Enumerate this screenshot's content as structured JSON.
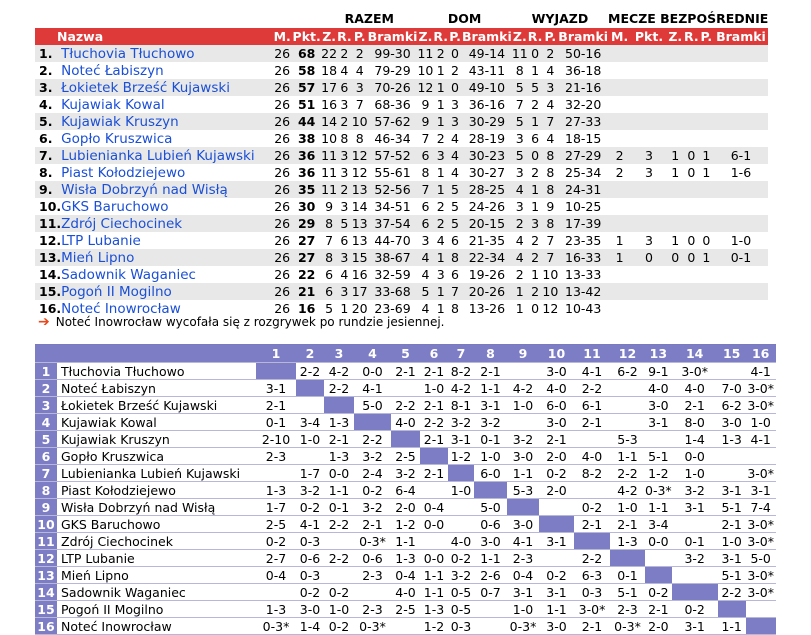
{
  "standings": {
    "group_headers": {
      "razem": "RAZEM",
      "dom": "DOM",
      "wyjazd": "WYJAZD",
      "mecze": "MECZE BEZPOŚREDNIE"
    },
    "columns": [
      "Nazwa",
      "M.",
      "Pkt.",
      "Z.",
      "R.",
      "P.",
      "Bramki",
      "Z.",
      "R.",
      "P.",
      "Bramki",
      "Z.",
      "R.",
      "P.",
      "Bramki",
      "M.",
      "Pkt.",
      "Z.",
      "R.",
      "P.",
      "Bramki"
    ],
    "rows": [
      {
        "pos": "1.",
        "team": "Tłuchovia Tłuchowo",
        "m": "26",
        "pkt": "68",
        "z": "22",
        "r": "2",
        "p": "2",
        "bramki": "99-30",
        "dz": "11",
        "dr": "2",
        "dp": "0",
        "dbramki": "49-14",
        "wz": "11",
        "wr": "0",
        "wp": "2",
        "wbramki": "50-16",
        "hm": "",
        "hpkt": "",
        "hz": "",
        "hr": "",
        "hp": "",
        "hbramki": ""
      },
      {
        "pos": "2.",
        "team": "Noteć Łabiszyn",
        "m": "26",
        "pkt": "58",
        "z": "18",
        "r": "4",
        "p": "4",
        "bramki": "79-29",
        "dz": "10",
        "dr": "1",
        "dp": "2",
        "dbramki": "43-11",
        "wz": "8",
        "wr": "1",
        "wp": "4",
        "wbramki": "36-18",
        "hm": "",
        "hpkt": "",
        "hz": "",
        "hr": "",
        "hp": "",
        "hbramki": ""
      },
      {
        "pos": "3.",
        "team": "Łokietek Brześć Kujawski",
        "m": "26",
        "pkt": "57",
        "z": "17",
        "r": "6",
        "p": "3",
        "bramki": "70-26",
        "dz": "12",
        "dr": "1",
        "dp": "0",
        "dbramki": "49-10",
        "wz": "5",
        "wr": "5",
        "wp": "3",
        "wbramki": "21-16",
        "hm": "",
        "hpkt": "",
        "hz": "",
        "hr": "",
        "hp": "",
        "hbramki": ""
      },
      {
        "pos": "4.",
        "team": "Kujawiak Kowal",
        "m": "26",
        "pkt": "51",
        "z": "16",
        "r": "3",
        "p": "7",
        "bramki": "68-36",
        "dz": "9",
        "dr": "1",
        "dp": "3",
        "dbramki": "36-16",
        "wz": "7",
        "wr": "2",
        "wp": "4",
        "wbramki": "32-20",
        "hm": "",
        "hpkt": "",
        "hz": "",
        "hr": "",
        "hp": "",
        "hbramki": ""
      },
      {
        "pos": "5.",
        "team": "Kujawiak Kruszyn",
        "m": "26",
        "pkt": "44",
        "z": "14",
        "r": "2",
        "p": "10",
        "bramki": "57-62",
        "dz": "9",
        "dr": "1",
        "dp": "3",
        "dbramki": "30-29",
        "wz": "5",
        "wr": "1",
        "wp": "7",
        "wbramki": "27-33",
        "hm": "",
        "hpkt": "",
        "hz": "",
        "hr": "",
        "hp": "",
        "hbramki": ""
      },
      {
        "pos": "6.",
        "team": "Gopło Kruszwica",
        "m": "26",
        "pkt": "38",
        "z": "10",
        "r": "8",
        "p": "8",
        "bramki": "46-34",
        "dz": "7",
        "dr": "2",
        "dp": "4",
        "dbramki": "28-19",
        "wz": "3",
        "wr": "6",
        "wp": "4",
        "wbramki": "18-15",
        "hm": "",
        "hpkt": "",
        "hz": "",
        "hr": "",
        "hp": "",
        "hbramki": ""
      },
      {
        "pos": "7.",
        "team": "Lubienianka Lubień Kujawski",
        "m": "26",
        "pkt": "36",
        "z": "11",
        "r": "3",
        "p": "12",
        "bramki": "57-52",
        "dz": "6",
        "dr": "3",
        "dp": "4",
        "dbramki": "30-23",
        "wz": "5",
        "wr": "0",
        "wp": "8",
        "wbramki": "27-29",
        "hm": "2",
        "hpkt": "3",
        "hz": "1",
        "hr": "0",
        "hp": "1",
        "hbramki": "6-1"
      },
      {
        "pos": "8.",
        "team": "Piast Kołodziejewo",
        "m": "26",
        "pkt": "36",
        "z": "11",
        "r": "3",
        "p": "12",
        "bramki": "55-61",
        "dz": "8",
        "dr": "1",
        "dp": "4",
        "dbramki": "30-27",
        "wz": "3",
        "wr": "2",
        "wp": "8",
        "wbramki": "25-34",
        "hm": "2",
        "hpkt": "3",
        "hz": "1",
        "hr": "0",
        "hp": "1",
        "hbramki": "1-6"
      },
      {
        "pos": "9.",
        "team": "Wisła Dobrzyń nad Wisłą",
        "m": "26",
        "pkt": "35",
        "z": "11",
        "r": "2",
        "p": "13",
        "bramki": "52-56",
        "dz": "7",
        "dr": "1",
        "dp": "5",
        "dbramki": "28-25",
        "wz": "4",
        "wr": "1",
        "wp": "8",
        "wbramki": "24-31",
        "hm": "",
        "hpkt": "",
        "hz": "",
        "hr": "",
        "hp": "",
        "hbramki": ""
      },
      {
        "pos": "10.",
        "team": "GKS Baruchowo",
        "m": "26",
        "pkt": "30",
        "z": "9",
        "r": "3",
        "p": "14",
        "bramki": "34-51",
        "dz": "6",
        "dr": "2",
        "dp": "5",
        "dbramki": "24-26",
        "wz": "3",
        "wr": "1",
        "wp": "9",
        "wbramki": "10-25",
        "hm": "",
        "hpkt": "",
        "hz": "",
        "hr": "",
        "hp": "",
        "hbramki": ""
      },
      {
        "pos": "11.",
        "team": "Zdrój Ciechocinek",
        "m": "26",
        "pkt": "29",
        "z": "8",
        "r": "5",
        "p": "13",
        "bramki": "37-54",
        "dz": "6",
        "dr": "2",
        "dp": "5",
        "dbramki": "20-15",
        "wz": "2",
        "wr": "3",
        "wp": "8",
        "wbramki": "17-39",
        "hm": "",
        "hpkt": "",
        "hz": "",
        "hr": "",
        "hp": "",
        "hbramki": ""
      },
      {
        "pos": "12.",
        "team": "LTP Lubanie",
        "m": "26",
        "pkt": "27",
        "z": "7",
        "r": "6",
        "p": "13",
        "bramki": "44-70",
        "dz": "3",
        "dr": "4",
        "dp": "6",
        "dbramki": "21-35",
        "wz": "4",
        "wr": "2",
        "wp": "7",
        "wbramki": "23-35",
        "hm": "1",
        "hpkt": "3",
        "hz": "1",
        "hr": "0",
        "hp": "0",
        "hbramki": "1-0"
      },
      {
        "pos": "13.",
        "team": "Mień Lipno",
        "m": "26",
        "pkt": "27",
        "z": "8",
        "r": "3",
        "p": "15",
        "bramki": "38-67",
        "dz": "4",
        "dr": "1",
        "dp": "8",
        "dbramki": "22-34",
        "wz": "4",
        "wr": "2",
        "wp": "7",
        "wbramki": "16-33",
        "hm": "1",
        "hpkt": "0",
        "hz": "0",
        "hr": "0",
        "hp": "1",
        "hbramki": "0-1"
      },
      {
        "pos": "14.",
        "team": "Sadownik Waganiec",
        "m": "26",
        "pkt": "22",
        "z": "6",
        "r": "4",
        "p": "16",
        "bramki": "32-59",
        "dz": "4",
        "dr": "3",
        "dp": "6",
        "dbramki": "19-26",
        "wz": "2",
        "wr": "1",
        "wp": "10",
        "wbramki": "13-33",
        "hm": "",
        "hpkt": "",
        "hz": "",
        "hr": "",
        "hp": "",
        "hbramki": ""
      },
      {
        "pos": "15.",
        "team": "Pogoń II Mogilno",
        "m": "26",
        "pkt": "21",
        "z": "6",
        "r": "3",
        "p": "17",
        "bramki": "33-68",
        "dz": "5",
        "dr": "1",
        "dp": "7",
        "dbramki": "20-26",
        "wz": "1",
        "wr": "2",
        "wp": "10",
        "wbramki": "13-42",
        "hm": "",
        "hpkt": "",
        "hz": "",
        "hr": "",
        "hp": "",
        "hbramki": ""
      },
      {
        "pos": "16.",
        "team": "Noteć Inowrocław",
        "m": "26",
        "pkt": "16",
        "z": "5",
        "r": "1",
        "p": "20",
        "bramki": "23-69",
        "dz": "4",
        "dr": "1",
        "dp": "8",
        "dbramki": "13-26",
        "wz": "1",
        "wr": "0",
        "wp": "12",
        "wbramki": "10-43",
        "hm": "",
        "hpkt": "",
        "hz": "",
        "hr": "",
        "hp": "",
        "hbramki": ""
      }
    ]
  },
  "note": "Noteć Inowrocław wycofała się z rozgrywek po rundzie jesiennej.",
  "matrix": {
    "col_numbers": [
      "1",
      "2",
      "3",
      "4",
      "5",
      "6",
      "7",
      "8",
      "9",
      "10",
      "11",
      "12",
      "13",
      "14",
      "15",
      "16"
    ],
    "rows": [
      {
        "num": "1",
        "team": "Tłuchovia Tłuchowo",
        "cells": [
          "",
          "2-2",
          "4-2",
          "0-0",
          "2-1",
          "2-1",
          "8-2",
          "2-1",
          "",
          "3-0",
          "4-1",
          "6-2",
          "9-1",
          "3-0*",
          "",
          "4-1"
        ]
      },
      {
        "num": "2",
        "team": "Noteć Łabiszyn",
        "cells": [
          "3-1",
          "",
          "2-2",
          "4-1",
          "",
          "1-0",
          "4-2",
          "1-1",
          "4-2",
          "4-0",
          "2-2",
          "",
          "4-0",
          "4-0",
          "7-0",
          "3-0*"
        ]
      },
      {
        "num": "3",
        "team": "Łokietek Brześć Kujawski",
        "cells": [
          "2-1",
          "",
          "",
          "5-0",
          "2-2",
          "2-1",
          "8-1",
          "3-1",
          "1-0",
          "6-0",
          "6-1",
          "",
          "3-0",
          "2-1",
          "6-2",
          "3-0*"
        ]
      },
      {
        "num": "4",
        "team": "Kujawiak Kowal",
        "cells": [
          "0-1",
          "3-4",
          "1-3",
          "",
          "4-0",
          "2-2",
          "3-2",
          "3-2",
          "",
          "3-0",
          "2-1",
          "",
          "3-1",
          "8-0",
          "3-0",
          "1-0"
        ]
      },
      {
        "num": "5",
        "team": "Kujawiak Kruszyn",
        "cells": [
          "2-10",
          "1-0",
          "2-1",
          "2-2",
          "",
          "2-1",
          "3-1",
          "0-1",
          "3-2",
          "2-1",
          "",
          "5-3",
          "",
          "1-4",
          "1-3",
          "4-1"
        ]
      },
      {
        "num": "6",
        "team": "Gopło Kruszwica",
        "cells": [
          "2-3",
          "",
          "1-3",
          "3-2",
          "2-5",
          "",
          "1-2",
          "1-0",
          "3-0",
          "2-0",
          "4-0",
          "1-1",
          "5-1",
          "0-0",
          "",
          ""
        ]
      },
      {
        "num": "7",
        "team": "Lubienianka Lubień Kujawski",
        "cells": [
          "",
          "1-7",
          "0-0",
          "2-4",
          "3-2",
          "2-1",
          "",
          "6-0",
          "1-1",
          "0-2",
          "8-2",
          "2-2",
          "1-2",
          "1-0",
          "",
          "3-0*"
        ]
      },
      {
        "num": "8",
        "team": "Piast Kołodziejewo",
        "cells": [
          "1-3",
          "3-2",
          "1-1",
          "0-2",
          "6-4",
          "",
          "1-0",
          "",
          "5-3",
          "2-0",
          "",
          "4-2",
          "0-3*",
          "3-2",
          "3-1",
          "3-1"
        ]
      },
      {
        "num": "9",
        "team": "Wisła Dobrzyń nad Wisłą",
        "cells": [
          "1-7",
          "0-2",
          "0-1",
          "3-2",
          "2-0",
          "0-4",
          "",
          "5-0",
          "",
          "",
          "0-2",
          "1-0",
          "1-1",
          "3-1",
          "5-1",
          "7-4"
        ]
      },
      {
        "num": "10",
        "team": "GKS Baruchowo",
        "cells": [
          "2-5",
          "4-1",
          "2-2",
          "2-1",
          "1-2",
          "0-0",
          "",
          "0-6",
          "3-0",
          "",
          "2-1",
          "2-1",
          "3-4",
          "",
          "2-1",
          "3-0*"
        ]
      },
      {
        "num": "11",
        "team": "Zdrój Ciechocinek",
        "cells": [
          "0-2",
          "0-3",
          "",
          "0-3*",
          "1-1",
          "",
          "4-0",
          "3-0",
          "4-1",
          "3-1",
          "",
          "1-3",
          "0-0",
          "0-1",
          "1-0",
          "3-0*"
        ]
      },
      {
        "num": "12",
        "team": "LTP Lubanie",
        "cells": [
          "2-7",
          "0-6",
          "2-2",
          "0-6",
          "1-3",
          "0-0",
          "0-2",
          "1-1",
          "2-3",
          "",
          "2-2",
          "",
          "",
          "3-2",
          "3-1",
          "5-0"
        ]
      },
      {
        "num": "13",
        "team": "Mień Lipno",
        "cells": [
          "0-4",
          "0-3",
          "",
          "2-3",
          "0-4",
          "1-1",
          "3-2",
          "2-6",
          "0-4",
          "0-2",
          "6-3",
          "0-1",
          "",
          "",
          "5-1",
          "3-0*"
        ]
      },
      {
        "num": "14",
        "team": "Sadownik Waganiec",
        "cells": [
          "",
          "0-2",
          "0-2",
          "",
          "4-0",
          "1-1",
          "0-5",
          "0-7",
          "3-1",
          "3-1",
          "0-3",
          "5-1",
          "0-2",
          "",
          "2-2",
          "3-0*"
        ]
      },
      {
        "num": "15",
        "team": "Pogoń II Mogilno",
        "cells": [
          "1-3",
          "3-0",
          "1-0",
          "2-3",
          "2-5",
          "1-3",
          "0-5",
          "",
          "1-0",
          "1-1",
          "3-0*",
          "2-3",
          "2-1",
          "0-2",
          "",
          ""
        ]
      },
      {
        "num": "16",
        "team": "Noteć Inowrocław",
        "cells": [
          "0-3*",
          "1-4",
          "0-2",
          "0-3*",
          "",
          "1-2",
          "0-3",
          "",
          "0-3*",
          "3-0",
          "2-1",
          "0-3*",
          "2-0",
          "3-1",
          "1-1",
          ""
        ]
      }
    ]
  }
}
